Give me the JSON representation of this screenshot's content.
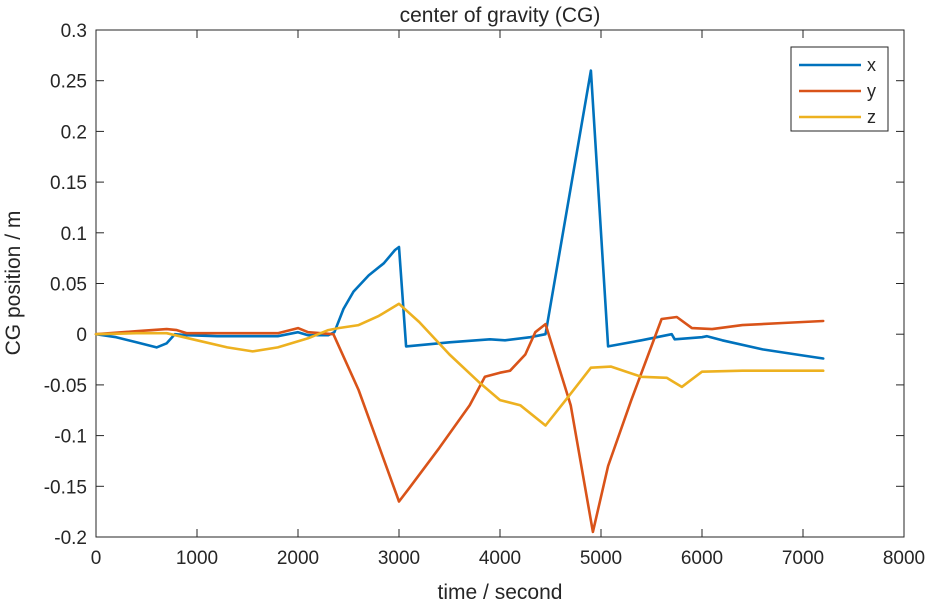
{
  "chart_data": {
    "type": "line",
    "title": "center of gravity (CG)",
    "xlabel": "time / second",
    "ylabel": "CG position / m",
    "xlim": [
      0,
      8000
    ],
    "ylim": [
      -0.2,
      0.3
    ],
    "xticks": [
      0,
      1000,
      2000,
      3000,
      4000,
      5000,
      6000,
      7000,
      8000
    ],
    "xtick_labels": [
      "0",
      "1000",
      "2000",
      "3000",
      "4000",
      "5000",
      "6000",
      "7000",
      "8000"
    ],
    "yticks": [
      -0.2,
      -0.15,
      -0.1,
      -0.05,
      0,
      0.05,
      0.1,
      0.15,
      0.2,
      0.25,
      0.3
    ],
    "ytick_labels": [
      "-0.2",
      "-0.15",
      "-0.1",
      "-0.05",
      "0",
      "0.05",
      "0.1",
      "0.15",
      "0.2",
      "0.25",
      "0.3"
    ],
    "grid": false,
    "legend_position": "top-right",
    "series": [
      {
        "name": "x",
        "color": "#0072BD",
        "points": [
          [
            0,
            0
          ],
          [
            200,
            -0.003
          ],
          [
            400,
            -0.008
          ],
          [
            600,
            -0.013
          ],
          [
            700,
            -0.009
          ],
          [
            780,
            0
          ],
          [
            900,
            -0.001
          ],
          [
            1200,
            -0.002
          ],
          [
            1500,
            -0.002
          ],
          [
            1800,
            -0.002
          ],
          [
            2000,
            0.002
          ],
          [
            2100,
            -0.001
          ],
          [
            2300,
            -0.001
          ],
          [
            2360,
            0.002
          ],
          [
            2450,
            0.025
          ],
          [
            2550,
            0.042
          ],
          [
            2700,
            0.058
          ],
          [
            2850,
            0.07
          ],
          [
            2960,
            0.083
          ],
          [
            3000,
            0.086
          ],
          [
            3070,
            -0.012
          ],
          [
            3500,
            -0.008
          ],
          [
            3900,
            -0.005
          ],
          [
            4050,
            -0.006
          ],
          [
            4300,
            -0.003
          ],
          [
            4450,
            0
          ],
          [
            4900,
            0.26
          ],
          [
            5070,
            -0.012
          ],
          [
            5400,
            -0.006
          ],
          [
            5700,
            0
          ],
          [
            5730,
            -0.005
          ],
          [
            6000,
            -0.003
          ],
          [
            6050,
            -0.002
          ],
          [
            6200,
            -0.006
          ],
          [
            6600,
            -0.015
          ],
          [
            7000,
            -0.021
          ],
          [
            7200,
            -0.024
          ]
        ]
      },
      {
        "name": "y",
        "color": "#D95319",
        "points": [
          [
            0,
            0
          ],
          [
            400,
            0.003
          ],
          [
            700,
            0.005
          ],
          [
            800,
            0.004
          ],
          [
            900,
            0.001
          ],
          [
            1200,
            0.001
          ],
          [
            1500,
            0.001
          ],
          [
            1800,
            0.001
          ],
          [
            2000,
            0.006
          ],
          [
            2100,
            0.002
          ],
          [
            2350,
            0
          ],
          [
            2600,
            -0.055
          ],
          [
            2800,
            -0.11
          ],
          [
            3000,
            -0.165
          ],
          [
            3100,
            -0.152
          ],
          [
            3400,
            -0.112
          ],
          [
            3700,
            -0.07
          ],
          [
            3850,
            -0.042
          ],
          [
            4000,
            -0.038
          ],
          [
            4100,
            -0.036
          ],
          [
            4250,
            -0.02
          ],
          [
            4350,
            0.002
          ],
          [
            4450,
            0.01
          ],
          [
            4700,
            -0.07
          ],
          [
            4920,
            -0.195
          ],
          [
            5070,
            -0.13
          ],
          [
            5300,
            -0.065
          ],
          [
            5600,
            0.015
          ],
          [
            5750,
            0.017
          ],
          [
            5900,
            0.006
          ],
          [
            6100,
            0.005
          ],
          [
            6400,
            0.009
          ],
          [
            6800,
            0.011
          ],
          [
            7200,
            0.013
          ]
        ]
      },
      {
        "name": "z",
        "color": "#EDB120",
        "points": [
          [
            0,
            0
          ],
          [
            400,
            0.001
          ],
          [
            700,
            0.001
          ],
          [
            1000,
            -0.006
          ],
          [
            1300,
            -0.013
          ],
          [
            1550,
            -0.017
          ],
          [
            1800,
            -0.013
          ],
          [
            2100,
            -0.004
          ],
          [
            2300,
            0.004
          ],
          [
            2400,
            0.006
          ],
          [
            2600,
            0.009
          ],
          [
            2800,
            0.018
          ],
          [
            3000,
            0.03
          ],
          [
            3200,
            0.012
          ],
          [
            3500,
            -0.02
          ],
          [
            3800,
            -0.048
          ],
          [
            4000,
            -0.065
          ],
          [
            4200,
            -0.07
          ],
          [
            4450,
            -0.09
          ],
          [
            4650,
            -0.065
          ],
          [
            4900,
            -0.033
          ],
          [
            5100,
            -0.032
          ],
          [
            5400,
            -0.042
          ],
          [
            5650,
            -0.043
          ],
          [
            5800,
            -0.052
          ],
          [
            6000,
            -0.037
          ],
          [
            6400,
            -0.036
          ],
          [
            7200,
            -0.036
          ]
        ]
      }
    ]
  }
}
